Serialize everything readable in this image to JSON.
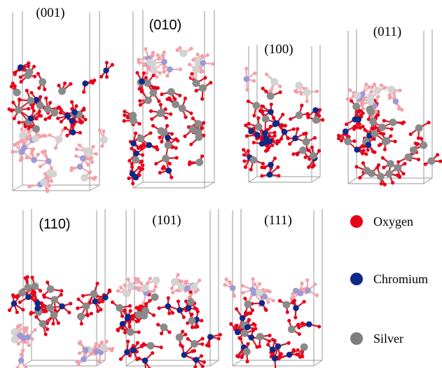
{
  "panels": [
    {
      "id": "001",
      "label": "(001)",
      "font": "serif"
    },
    {
      "id": "010",
      "label": "(010)",
      "font": "sans"
    },
    {
      "id": "100",
      "label": "(100)",
      "font": "serif"
    },
    {
      "id": "011",
      "label": "(011)",
      "font": "serif"
    },
    {
      "id": "110",
      "label": "(110)",
      "font": "sans"
    },
    {
      "id": "101",
      "label": "(101)",
      "font": "serif"
    },
    {
      "id": "111",
      "label": "(111)",
      "font": "serif"
    }
  ],
  "legend": {
    "items": [
      {
        "label": "Oxygen",
        "color": "#e8001a"
      },
      {
        "label": "Chromium",
        "color": "#0b2a8a"
      },
      {
        "label": "Silver",
        "color": "#7e7e7e"
      }
    ]
  },
  "atom_colors": {
    "oxygen": "#e8001a",
    "chromium": "#0b2a8a",
    "silver": "#8a8a8a",
    "faded_oxygen": "#f2a0a8",
    "faded_chromium": "#9a9ad6",
    "faded_silver": "#d3d3d3",
    "bond": "#d11a2a",
    "faded_bond": "#f0a8b0",
    "cell_line": "#9a9a9a"
  }
}
